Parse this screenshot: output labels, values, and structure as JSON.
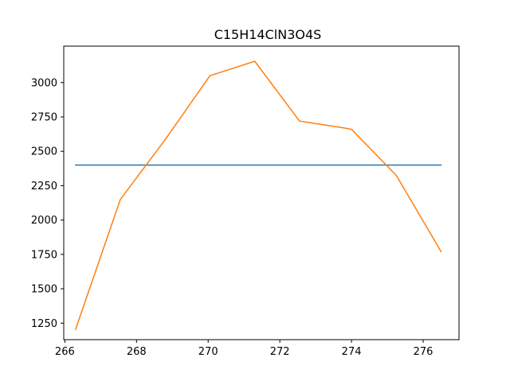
{
  "chart_data": {
    "type": "line",
    "title": "C15H14ClN3O4S",
    "xlabel": "",
    "ylabel": "",
    "xlim": [
      265.97,
      277.0
    ],
    "ylim": [
      1130,
      3265
    ],
    "grid": false,
    "xticks": [
      266,
      268,
      270,
      272,
      274,
      276
    ],
    "yticks": [
      1250,
      1500,
      1750,
      2000,
      2250,
      2500,
      2750,
      3000
    ],
    "series": [
      {
        "color": "#1f77b4",
        "x": [
          266.3,
          276.5
        ],
        "y": [
          2400,
          2400
        ]
      },
      {
        "color": "#ff7f0e",
        "x": [
          266.3,
          267.55,
          268.8,
          270.05,
          271.3,
          272.55,
          273.8,
          274.0,
          275.25,
          276.5
        ],
        "y": [
          1205,
          2150,
          2585,
          3050,
          3155,
          2720,
          2670,
          2660,
          2325,
          1770
        ]
      }
    ]
  }
}
